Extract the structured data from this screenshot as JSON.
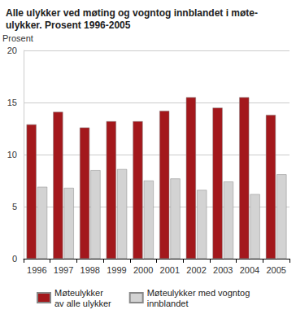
{
  "chart_data": {
    "type": "bar",
    "title": "Alle ulykker ved møting og vogntog innblandet i møte-\nulykker. Prosent 1996-2005",
    "y_label": "Prosent",
    "categories": [
      "1996",
      "1997",
      "1998",
      "1999",
      "2000",
      "2001",
      "2002",
      "2003",
      "2004",
      "2005"
    ],
    "series": [
      {
        "name": "Møteulykker\nav alle ulykker",
        "color": "#a3181c",
        "values": [
          12.9,
          14.1,
          12.6,
          13.2,
          13.2,
          14.2,
          15.5,
          14.5,
          15.5,
          13.8
        ]
      },
      {
        "name": "Møteulykker med vogntog\ninnblandet",
        "color": "#d3d3d3",
        "values": [
          6.9,
          6.8,
          8.5,
          8.6,
          7.5,
          7.7,
          6.6,
          7.4,
          6.2,
          8.1
        ]
      }
    ],
    "ylim": [
      0,
      20
    ],
    "yticks": [
      0,
      5,
      10,
      15,
      20
    ],
    "grid": true,
    "legend": "bottom"
  }
}
